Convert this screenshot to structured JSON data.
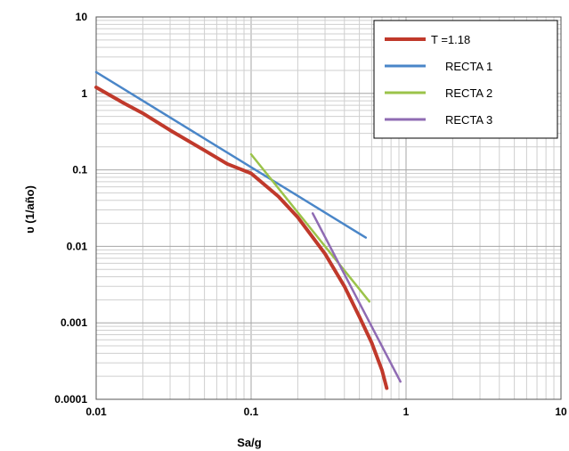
{
  "chart_data": {
    "type": "line",
    "xlabel": "Sa/g",
    "ylabel": "υ (1/año)",
    "xscale": "log",
    "yscale": "log",
    "xlim": [
      0.01,
      10
    ],
    "ylim": [
      0.0001,
      10
    ],
    "x_ticks": [
      "0.01",
      "0.1",
      "1",
      "10"
    ],
    "y_ticks": [
      "10",
      "1",
      "0.1",
      "0.01",
      "0.001",
      "0.0001"
    ],
    "grid": "major and minor",
    "legend_position": "top-right",
    "series": [
      {
        "name": "T =1.18",
        "color": "#c0392b",
        "x": [
          0.01,
          0.015,
          0.02,
          0.03,
          0.05,
          0.07,
          0.1,
          0.15,
          0.2,
          0.3,
          0.4,
          0.5,
          0.6,
          0.7,
          0.75
        ],
        "y": [
          1.2,
          0.75,
          0.55,
          0.33,
          0.18,
          0.12,
          0.09,
          0.045,
          0.024,
          0.008,
          0.003,
          0.0012,
          0.00055,
          0.00024,
          0.00014
        ]
      },
      {
        "name": "RECTA 1",
        "color": "#4a86c8",
        "x": [
          0.01,
          0.55
        ],
        "y": [
          1.9,
          0.013
        ]
      },
      {
        "name": "RECTA 2",
        "color": "#9bc34a",
        "x": [
          0.1,
          0.58
        ],
        "y": [
          0.16,
          0.0019
        ]
      },
      {
        "name": "RECTA 3",
        "color": "#8f6bb3",
        "x": [
          0.25,
          0.92
        ],
        "y": [
          0.027,
          0.00017
        ]
      }
    ]
  }
}
